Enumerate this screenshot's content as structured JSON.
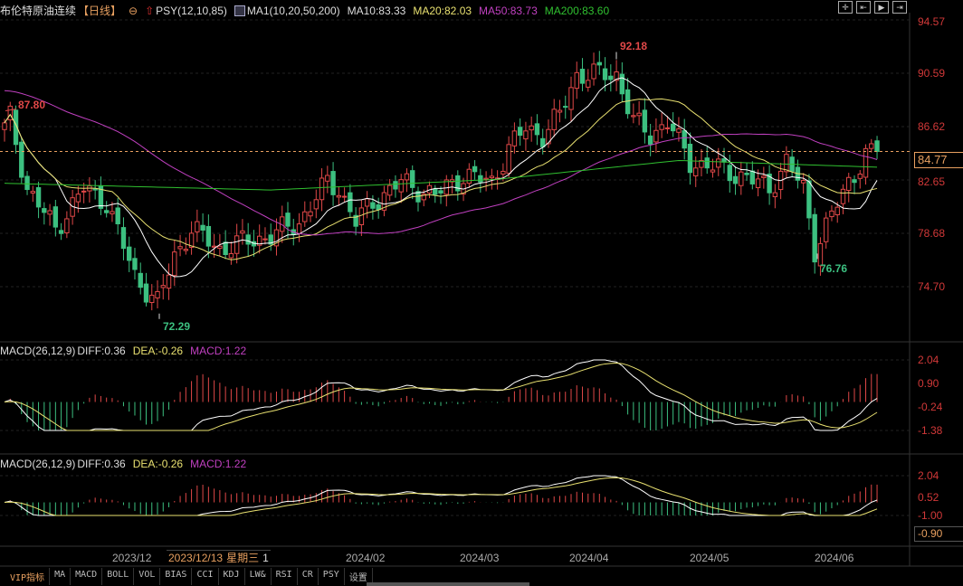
{
  "header": {
    "title": "布伦特原油连续",
    "period": "【日线】",
    "psy": "PSY(12,10,85)",
    "ma_name": "MA1(10,20,50,200)",
    "ma10": "MA10:83.33",
    "ma20": "MA20:82.03",
    "ma50": "MA50:83.73",
    "ma200": "MA200:83.60"
  },
  "macd1": {
    "name": "MACD(26,12,9)",
    "diff": "DIFF:0.36",
    "dea": "DEA:-0.26",
    "macd": "MACD:1.22",
    "ticks": [
      "2.04",
      "0.90",
      "-0.24",
      "-1.38"
    ]
  },
  "macd2": {
    "name": "MACD(26,12,9)",
    "diff": "DIFF:0.36",
    "dea": "DEA:-0.26",
    "macd": "MACD:1.22",
    "ticks": [
      "2.04",
      "0.52",
      "-1.00"
    ],
    "cursor": "-0.90"
  },
  "price_axis": [
    "94.57",
    "90.59",
    "86.62",
    "82.65",
    "78.68",
    "74.70"
  ],
  "last_price": "84.77",
  "annotations": {
    "high1": "87.80",
    "high2": "92.18",
    "low1": "72.29",
    "low2": "76.76"
  },
  "x_axis": [
    "2023/12",
    "2024/02",
    "2024/03",
    "2024/04",
    "2024/05",
    "2024/06"
  ],
  "cursor_date": "2023/12/13",
  "cursor_weekday": "星期三",
  "cursor_extra": "1",
  "toolbar": [
    "VIP指标",
    "MA",
    "MACD",
    "BOLL",
    "VOL",
    "BIAS",
    "CCI",
    "KDJ",
    "LW&",
    "RSI",
    "CR",
    "PSY",
    "设置"
  ],
  "colors": {
    "up": "#e04848",
    "down": "#3cc080",
    "ma10": "#ffffff",
    "ma20": "#e8e070",
    "ma50": "#c040c0",
    "ma200": "#30c030"
  },
  "chart_data": {
    "type": "candlestick",
    "title": "布伦特原油连续 日线",
    "yrange": [
      74.7,
      94.57
    ],
    "close_anchors": [
      [
        0,
        86.5
      ],
      [
        1,
        87.3
      ],
      [
        4,
        82
      ],
      [
        9,
        79
      ],
      [
        14,
        82
      ],
      [
        18,
        81
      ],
      [
        23,
        75.5
      ],
      [
        27,
        73.5
      ],
      [
        30,
        77
      ],
      [
        33,
        79
      ],
      [
        38,
        77.5
      ],
      [
        42,
        78
      ],
      [
        47,
        78.5
      ],
      [
        52,
        79.5
      ],
      [
        57,
        82.5
      ],
      [
        59,
        82
      ],
      [
        62,
        79.5
      ],
      [
        65,
        81
      ],
      [
        70,
        82.5
      ],
      [
        76,
        81.5
      ],
      [
        81,
        83
      ],
      [
        86,
        82.5
      ],
      [
        89,
        85
      ],
      [
        92,
        86.5
      ],
      [
        95,
        86
      ],
      [
        98,
        87.5
      ],
      [
        101,
        90.5
      ],
      [
        105,
        90.5
      ],
      [
        108,
        90.5
      ],
      [
        111,
        87
      ],
      [
        114,
        86
      ],
      [
        117,
        87
      ],
      [
        121,
        84
      ],
      [
        126,
        83.5
      ],
      [
        130,
        83
      ],
      [
        135,
        82
      ],
      [
        138,
        84
      ],
      [
        141,
        82
      ],
      [
        143,
        77.5
      ],
      [
        146,
        80
      ],
      [
        149,
        82.5
      ],
      [
        152,
        84.5
      ],
      [
        154,
        84.77
      ]
    ],
    "ma200_anchors": [
      [
        0,
        82.4
      ],
      [
        47,
        81.9
      ],
      [
        87,
        82.7
      ],
      [
        119,
        84.1
      ],
      [
        154,
        83.6
      ]
    ]
  }
}
